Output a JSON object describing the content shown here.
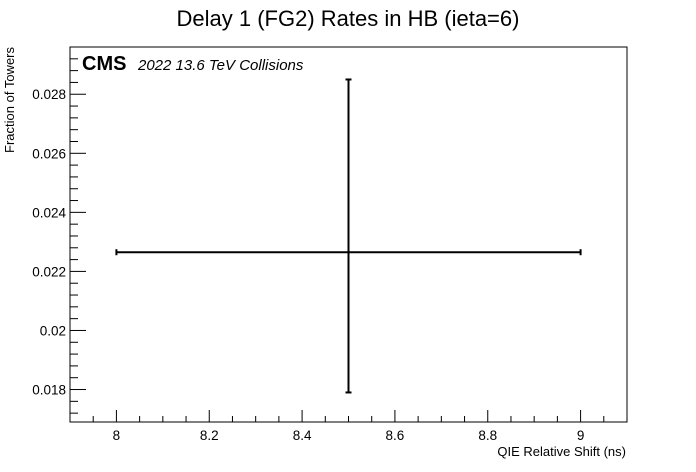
{
  "chart_data": {
    "type": "scatter",
    "title": "Delay 1 (FG2) Rates in HB (ieta=6)",
    "xlabel": "QIE Relative Shift (ns)",
    "ylabel": "Fraction of Towers",
    "xlim": [
      7.9,
      9.1
    ],
    "ylim": [
      0.0169,
      0.0296
    ],
    "x_ticks": [
      8,
      8.2,
      8.4,
      8.6,
      8.8,
      9
    ],
    "x_tick_labels": [
      "8",
      "8.2",
      "8.4",
      "8.6",
      "8.8",
      "9"
    ],
    "y_ticks": [
      0.018,
      0.02,
      0.022,
      0.024,
      0.026,
      0.028
    ],
    "y_tick_labels": [
      "0.018",
      "0.02",
      "0.022",
      "0.024",
      "0.026",
      "0.028"
    ],
    "grid": false,
    "series": [
      {
        "points": [
          {
            "x": 8.5,
            "y": 0.02265,
            "x_low": 8.0,
            "x_high": 9.0,
            "y_low": 0.0179,
            "y_high": 0.0285
          }
        ]
      }
    ],
    "annotation": {
      "label": "CMS",
      "sublabel": "2022 13.6 TeV Collisions"
    }
  }
}
